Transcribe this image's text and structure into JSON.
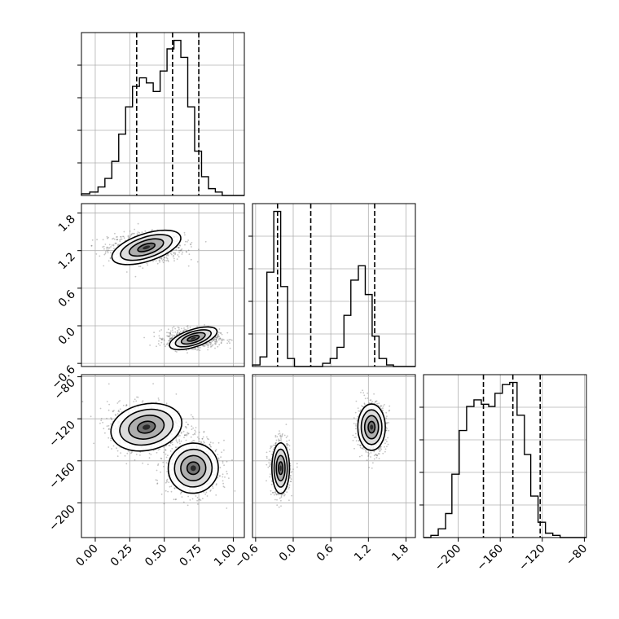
{
  "chart_data": {
    "type": "corner",
    "title": "",
    "grid": true,
    "parameters": [
      {
        "key": "p0",
        "range": [
          -0.1,
          1.08
        ],
        "ticks": [
          0.0,
          0.25,
          0.5,
          0.75,
          1.0
        ],
        "tick_labels": [
          "0.00",
          "0.25",
          "0.50",
          "0.75",
          "1.00"
        ],
        "quantiles": [
          0.3,
          0.56,
          0.75
        ],
        "histogram": {
          "edges": [
            -0.1,
            -0.04,
            0.02,
            0.07,
            0.12,
            0.17,
            0.22,
            0.27,
            0.32,
            0.37,
            0.42,
            0.47,
            0.52,
            0.57,
            0.62,
            0.67,
            0.72,
            0.77,
            0.82,
            0.87,
            0.92,
            0.97,
            1.02,
            1.08
          ],
          "counts": [
            0.01,
            0.02,
            0.05,
            0.1,
            0.2,
            0.36,
            0.52,
            0.64,
            0.69,
            0.66,
            0.61,
            0.73,
            0.86,
            0.91,
            0.81,
            0.52,
            0.26,
            0.11,
            0.04,
            0.02,
            0.0,
            0.0,
            0.0
          ]
        }
      },
      {
        "key": "p1",
        "range": [
          -0.65,
          1.95
        ],
        "ticks": [
          -0.6,
          0.0,
          0.6,
          1.2,
          1.8
        ],
        "tick_labels": [
          "−0.6",
          "0.0",
          "0.6",
          "1.2",
          "1.8"
        ],
        "quantiles": [
          -0.25,
          0.28,
          1.3
        ],
        "histogram": {
          "edges": [
            -0.65,
            -0.53,
            -0.42,
            -0.31,
            -0.2,
            -0.09,
            0.02,
            0.14,
            0.25,
            0.36,
            0.47,
            0.59,
            0.7,
            0.81,
            0.92,
            1.04,
            1.15,
            1.26,
            1.37,
            1.49,
            1.6,
            1.71,
            1.82,
            1.95
          ],
          "counts": [
            0.01,
            0.06,
            0.59,
            0.97,
            0.5,
            0.05,
            0.0,
            0.0,
            0.0,
            0.0,
            0.02,
            0.05,
            0.12,
            0.32,
            0.54,
            0.63,
            0.45,
            0.19,
            0.05,
            0.01,
            0.0,
            0.0,
            0.0
          ]
        }
      },
      {
        "key": "p2",
        "range": [
          -233,
          -78
        ],
        "ticks": [
          -200,
          -160,
          -120,
          -80
        ],
        "tick_labels": [
          "−200",
          "−160",
          "−120",
          "−80"
        ],
        "quantiles": [
          -176,
          -148,
          -122
        ],
        "histogram": {
          "edges": [
            -233,
            -226,
            -219,
            -212,
            -206,
            -199,
            -192,
            -185,
            -178,
            -171,
            -165,
            -158,
            -151,
            -144,
            -137,
            -131,
            -124,
            -117,
            -110,
            -103,
            -96,
            -90,
            -83,
            -78
          ],
          "counts": [
            0.0,
            0.01,
            0.04,
            0.11,
            0.29,
            0.49,
            0.6,
            0.63,
            0.61,
            0.6,
            0.66,
            0.7,
            0.71,
            0.56,
            0.38,
            0.19,
            0.07,
            0.02,
            0.01,
            0.0,
            0.0,
            0.0,
            0.0
          ]
        }
      }
    ],
    "modes": [
      {
        "center": [
          0.37,
          1.25,
          -128
        ],
        "sigma": [
          0.13,
          0.11,
          11
        ],
        "weight": 0.5
      },
      {
        "center": [
          0.71,
          -0.2,
          -167
        ],
        "sigma": [
          0.09,
          0.07,
          12
        ],
        "weight": 0.5
      }
    ]
  }
}
